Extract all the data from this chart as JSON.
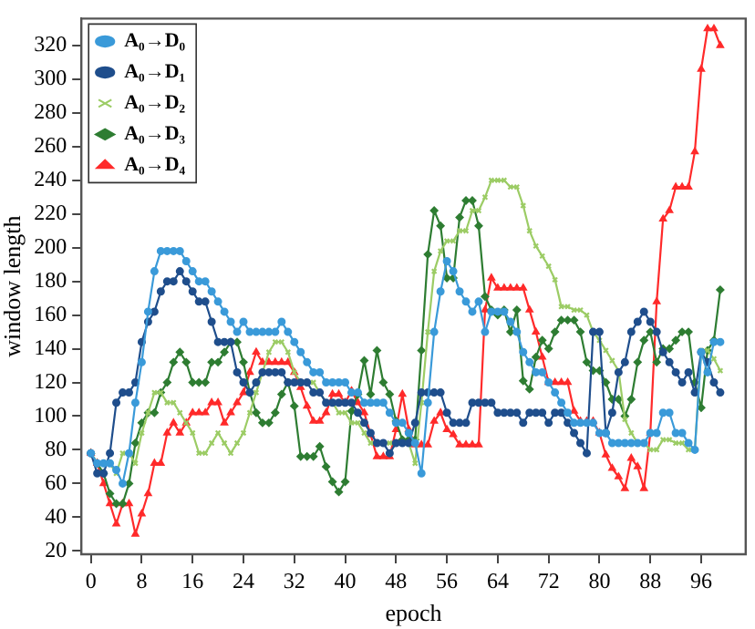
{
  "chart_data": {
    "type": "line",
    "xlabel": "epoch",
    "ylabel": "window length",
    "x": [
      0,
      1,
      2,
      3,
      4,
      5,
      6,
      7,
      8,
      9,
      10,
      11,
      12,
      13,
      14,
      15,
      16,
      17,
      18,
      19,
      20,
      21,
      22,
      23,
      24,
      25,
      26,
      27,
      28,
      29,
      30,
      31,
      32,
      33,
      34,
      35,
      36,
      37,
      38,
      39,
      40,
      41,
      42,
      43,
      44,
      45,
      46,
      47,
      48,
      49,
      50,
      51,
      52,
      53,
      54,
      55,
      56,
      57,
      58,
      59,
      60,
      61,
      62,
      63,
      64,
      65,
      66,
      67,
      68,
      69,
      70,
      71,
      72,
      73,
      74,
      75,
      76,
      77,
      78,
      79,
      80,
      81,
      82,
      83,
      84,
      85,
      86,
      87,
      88,
      89,
      90,
      91,
      92,
      93,
      94,
      95,
      96,
      97,
      98,
      99
    ],
    "xlim": [
      -1.5,
      103
    ],
    "xticks": [
      0,
      8,
      16,
      24,
      32,
      40,
      48,
      56,
      64,
      72,
      80,
      88,
      96
    ],
    "ylim": [
      18,
      336
    ],
    "yticks": [
      20,
      40,
      60,
      80,
      100,
      120,
      140,
      160,
      180,
      200,
      220,
      240,
      260,
      280,
      300,
      320
    ],
    "grid": false,
    "legend": "top left",
    "line_style": "solid",
    "series": [
      {
        "name": "A₀→D₀",
        "color": "#3a9ad9",
        "marker": "circle",
        "values": [
          78,
          72,
          72,
          72,
          68,
          60,
          78,
          108,
          132,
          162,
          186,
          198,
          198,
          198,
          198,
          192,
          186,
          180,
          180,
          174,
          168,
          162,
          156,
          150,
          156,
          150,
          150,
          150,
          150,
          150,
          156,
          150,
          144,
          138,
          132,
          126,
          126,
          120,
          120,
          120,
          120,
          114,
          114,
          108,
          108,
          108,
          108,
          102,
          96,
          96,
          90,
          84,
          66,
          108,
          150,
          174,
          192,
          186,
          174,
          168,
          162,
          168,
          150,
          162,
          162,
          162,
          156,
          150,
          138,
          132,
          126,
          126,
          120,
          114,
          108,
          102,
          96,
          96,
          96,
          96,
          90,
          90,
          84,
          84,
          84,
          84,
          84,
          84,
          90,
          90,
          102,
          102,
          90,
          90,
          84,
          80,
          138,
          126,
          144,
          144
        ]
      },
      {
        "name": "A₀→D₁",
        "color": "#1f4e8c",
        "marker": "circle",
        "values": [
          78,
          66,
          66,
          78,
          108,
          114,
          114,
          120,
          144,
          156,
          162,
          174,
          180,
          180,
          186,
          180,
          174,
          168,
          168,
          156,
          144,
          144,
          144,
          126,
          120,
          114,
          120,
          126,
          126,
          126,
          126,
          120,
          120,
          120,
          120,
          114,
          114,
          108,
          108,
          108,
          108,
          108,
          102,
          96,
          90,
          84,
          84,
          78,
          84,
          84,
          84,
          96,
          114,
          114,
          114,
          114,
          102,
          96,
          96,
          96,
          108,
          108,
          108,
          108,
          102,
          102,
          102,
          102,
          96,
          102,
          102,
          102,
          96,
          102,
          102,
          96,
          90,
          84,
          78,
          150,
          150,
          90,
          102,
          126,
          132,
          150,
          156,
          162,
          156,
          150,
          138,
          132,
          126,
          120,
          126,
          114,
          138,
          132,
          120,
          114
        ]
      },
      {
        "name": "A₀→D₂",
        "color": "#9ccc65",
        "marker": "cross",
        "values": [
          78,
          72,
          72,
          72,
          66,
          78,
          78,
          72,
          90,
          102,
          114,
          114,
          108,
          108,
          102,
          96,
          90,
          78,
          78,
          84,
          90,
          84,
          78,
          84,
          90,
          102,
          114,
          126,
          138,
          144,
          144,
          138,
          126,
          120,
          120,
          120,
          114,
          108,
          108,
          102,
          102,
          96,
          96,
          90,
          84,
          84,
          84,
          84,
          84,
          84,
          84,
          72,
          108,
          150,
          186,
          198,
          204,
          204,
          210,
          210,
          222,
          222,
          230,
          240,
          240,
          240,
          236,
          236,
          225,
          210,
          201,
          195,
          189,
          181,
          165,
          165,
          163,
          163,
          160,
          150,
          145,
          139,
          133,
          127,
          98,
          90,
          84,
          84,
          80,
          80,
          86,
          86,
          84,
          84,
          80,
          80,
          139,
          139,
          134,
          127
        ]
      },
      {
        "name": "A₀→D₃",
        "color": "#2e7d32",
        "marker": "diamond",
        "values": [
          78,
          72,
          66,
          54,
          48,
          48,
          60,
          84,
          96,
          102,
          102,
          114,
          120,
          132,
          138,
          132,
          120,
          120,
          120,
          132,
          132,
          138,
          144,
          144,
          132,
          114,
          102,
          96,
          96,
          102,
          113,
          120,
          106,
          76,
          76,
          76,
          82,
          70,
          61,
          55,
          61,
          103,
          113,
          133,
          113,
          139,
          120,
          113,
          97,
          86,
          86,
          86,
          139,
          196,
          222,
          213,
          182,
          182,
          218,
          228,
          228,
          213,
          171,
          163,
          160,
          163,
          150,
          163,
          121,
          116,
          135,
          145,
          140,
          150,
          157,
          157,
          157,
          150,
          132,
          127,
          127,
          120,
          110,
          110,
          100,
          110,
          132,
          145,
          150,
          132,
          140,
          140,
          145,
          150,
          150,
          120,
          105,
          139,
          145,
          175
        ]
      },
      {
        "name": "A₀→D₄",
        "color": "#ff2a2a",
        "marker": "triangle",
        "values": [
          78,
          72,
          60,
          48,
          36,
          48,
          48,
          30,
          42,
          54,
          72,
          72,
          90,
          96,
          90,
          96,
          102,
          102,
          102,
          108,
          108,
          96,
          102,
          108,
          114,
          126,
          138,
          132,
          132,
          132,
          132,
          132,
          126,
          117,
          106,
          97,
          97,
          102,
          113,
          113,
          108,
          115,
          108,
          102,
          89,
          76,
          76,
          76,
          92,
          113,
          92,
          83,
          83,
          83,
          97,
          102,
          92,
          89,
          83,
          83,
          83,
          83,
          163,
          182,
          176,
          176,
          176,
          176,
          176,
          163,
          150,
          135,
          120,
          120,
          120,
          120,
          103,
          97,
          97,
          97,
          90,
          77,
          69,
          64,
          57,
          75,
          70,
          57,
          90,
          168,
          217,
          222,
          236,
          236,
          236,
          257,
          306,
          330,
          330,
          320
        ]
      }
    ]
  }
}
